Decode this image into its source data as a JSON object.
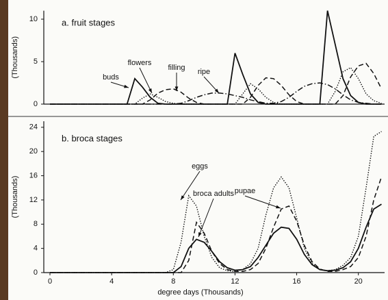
{
  "chart_data": [
    {
      "type": "line",
      "title": "a. fruit stages",
      "y_label": "(Thousands)",
      "x": [
        0,
        0.5,
        1,
        1.5,
        2,
        2.5,
        3,
        3.5,
        4,
        4.5,
        5,
        5.5,
        6,
        6.5,
        7,
        7.5,
        8,
        8.5,
        9,
        9.5,
        10,
        10.5,
        11,
        11.5,
        12,
        12.5,
        13,
        13.5,
        14,
        14.5,
        15,
        15.5,
        16,
        16.5,
        17,
        17.5,
        18,
        18.5,
        19,
        19.5,
        20,
        20.5,
        21,
        21.5
      ],
      "xlim": [
        -0.4,
        21.7
      ],
      "ylim": [
        0,
        11
      ],
      "yticks": [
        0,
        5,
        10
      ],
      "series": [
        {
          "name": "buds",
          "color": "#111111",
          "dash": "solid",
          "values": [
            0,
            0,
            0,
            0,
            0,
            0,
            0,
            0,
            0,
            0,
            0,
            3,
            2,
            0.8,
            0.1,
            0,
            0,
            0,
            0,
            0,
            0,
            0,
            0,
            0,
            6,
            3.5,
            1.2,
            0.2,
            0,
            0,
            0,
            0,
            0,
            0,
            0,
            0,
            11,
            7,
            3,
            1,
            0.2,
            0,
            0,
            0
          ]
        },
        {
          "name": "flowers",
          "color": "#111111",
          "dash": "dotted",
          "values": [
            0,
            0,
            0,
            0,
            0,
            0,
            0,
            0,
            0,
            0,
            0,
            0,
            0.7,
            1.2,
            0.8,
            0.3,
            0.1,
            0,
            0,
            0,
            0,
            0,
            0,
            0,
            0,
            1.2,
            2.4,
            1.8,
            0.8,
            0.2,
            0,
            0,
            0,
            0,
            0,
            0,
            0,
            1.5,
            3.8,
            4.3,
            3,
            1.2,
            0.4,
            0.1
          ]
        },
        {
          "name": "filling",
          "color": "#111111",
          "dash": "dashed",
          "values": [
            0,
            0,
            0,
            0,
            0,
            0,
            0,
            0,
            0,
            0,
            0,
            0,
            0,
            0.5,
            1.3,
            1.7,
            1.8,
            1.4,
            0.7,
            0.2,
            0,
            0,
            0,
            0,
            0,
            0,
            0.8,
            2.2,
            3.1,
            3.0,
            2.2,
            1.1,
            0.3,
            0,
            0,
            0,
            0,
            0,
            1,
            3.2,
            4.5,
            4.8,
            3.6,
            1.8
          ]
        },
        {
          "name": "ripe",
          "color": "#111111",
          "dash": "dashdot",
          "values": [
            0,
            0,
            0,
            0,
            0,
            0,
            0,
            0,
            0,
            0,
            0,
            0,
            0,
            0,
            0,
            0,
            0,
            0.1,
            0.4,
            0.8,
            1.1,
            1.3,
            1.3,
            1.2,
            1.0,
            0.8,
            0.5,
            0.3,
            0.1,
            0.1,
            0.3,
            0.8,
            1.5,
            2.1,
            2.4,
            2.5,
            2.3,
            1.8,
            1.1,
            0.5,
            0.2,
            0.1,
            0,
            0
          ]
        }
      ]
    },
    {
      "type": "line",
      "title": "b. broca stages",
      "y_label": "(Thousands)",
      "x_label": "degree days (Thousands)",
      "x": [
        0,
        0.5,
        1,
        1.5,
        2,
        2.5,
        3,
        3.5,
        4,
        4.5,
        5,
        5.5,
        6,
        6.5,
        7,
        7.5,
        8,
        8.5,
        9,
        9.5,
        10,
        10.5,
        11,
        11.5,
        12,
        12.5,
        13,
        13.5,
        14,
        14.5,
        15,
        15.5,
        16,
        16.5,
        17,
        17.5,
        18,
        18.5,
        19,
        19.5,
        20,
        20.5,
        21,
        21.5
      ],
      "xlim": [
        -0.4,
        21.7
      ],
      "xticks": [
        0,
        4,
        8,
        12,
        16,
        20
      ],
      "ylim": [
        0,
        25
      ],
      "yticks": [
        0,
        4,
        8,
        12,
        16,
        20,
        24
      ],
      "series": [
        {
          "name": "eggs",
          "color": "#111111",
          "dash": "dotted",
          "values": [
            0,
            0,
            0,
            0,
            0,
            0,
            0,
            0,
            0,
            0,
            0,
            0,
            0,
            0,
            0,
            0,
            0.5,
            5,
            12.7,
            11,
            6,
            2.5,
            0.8,
            0.3,
            0.2,
            0.5,
            1.5,
            4,
            9.5,
            14,
            15.8,
            14,
            9,
            4,
            1.5,
            0.5,
            0.3,
            0.5,
            1.2,
            2.5,
            6,
            14,
            22.5,
            23.3
          ]
        },
        {
          "name": "pupae",
          "color": "#111111",
          "dash": "dashed",
          "values": [
            0,
            0,
            0,
            0,
            0,
            0,
            0,
            0,
            0,
            0,
            0,
            0,
            0,
            0,
            0,
            0,
            0,
            0,
            2,
            8.3,
            6.5,
            3.5,
            1.5,
            0.5,
            0.2,
            0.2,
            0.5,
            1.5,
            4,
            7.5,
            10.5,
            11,
            8.5,
            4.5,
            1.8,
            0.6,
            0.2,
            0.2,
            0.5,
            1,
            2.5,
            6,
            12,
            15.8
          ]
        },
        {
          "name": "broca adults",
          "color": "#111111",
          "dash": "solid",
          "values": [
            0,
            0,
            0,
            0,
            0,
            0,
            0,
            0,
            0,
            0,
            0,
            0,
            0,
            0,
            0,
            0,
            0,
            1,
            4,
            5.5,
            5,
            3.5,
            1.8,
            0.8,
            0.4,
            0.5,
            1,
            2.5,
            4.5,
            6.5,
            7.5,
            7.3,
            5.5,
            3,
            1.3,
            0.5,
            0.3,
            0.4,
            0.8,
            1.8,
            4,
            7.5,
            10.5,
            11.3
          ]
        }
      ]
    }
  ]
}
